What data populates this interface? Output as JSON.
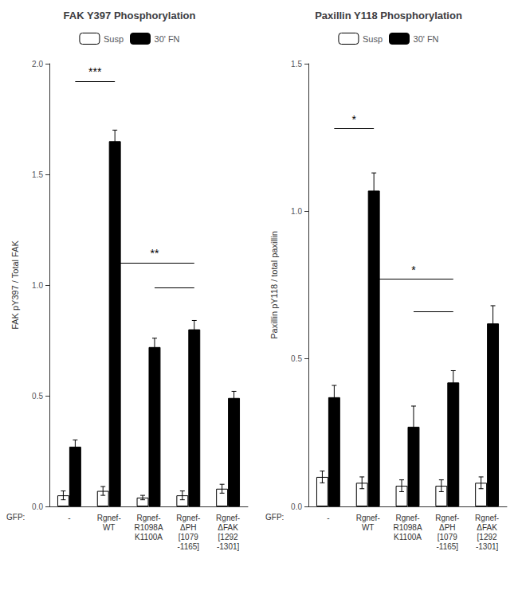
{
  "chart_data": [
    {
      "type": "bar",
      "title": "FAK Y397 Phosphorylation",
      "ylabel": "FAK pY397 / Total FAK",
      "xlabel": "GFP:",
      "categories": [
        "-",
        "Rgnef-\nWT",
        "Rgnef-\nR1098A\nK1100A",
        "Rgnef-\nΔPH\n[1079\n-1165]",
        "Rgnef-\nΔFAK\n[1292\n-1301]"
      ],
      "series": [
        {
          "name": "Susp",
          "color": "white",
          "values": [
            0.05,
            0.07,
            0.04,
            0.05,
            0.08
          ],
          "errors": [
            0.02,
            0.02,
            0.01,
            0.02,
            0.02
          ]
        },
        {
          "name": "30' FN",
          "color": "black",
          "values": [
            0.27,
            1.65,
            0.72,
            0.8,
            0.49
          ],
          "errors": [
            0.03,
            0.05,
            0.04,
            0.04,
            0.03
          ]
        }
      ],
      "ylim": [
        0,
        2.0
      ],
      "yticks": [
        {
          "value": 0,
          "label": "0.0"
        },
        {
          "value": 0.5,
          "label": "0.5"
        },
        {
          "value": 1.0,
          "label": "1.0"
        },
        {
          "value": 1.5,
          "label": "1.5"
        },
        {
          "value": 2.0,
          "label": "2.0"
        }
      ],
      "grid": false,
      "legend": "top",
      "annotations": [
        {
          "text": "***",
          "x": [
            "-",
            "Rgnef-\nWT"
          ],
          "y": 1.92
        },
        {
          "text": "**",
          "x": [
            "Rgnef-\nWT",
            "Rgnef-\nΔPH\n[1079\n-1165]"
          ],
          "y": 1.1
        },
        {
          "x": [
            "Rgnef-\nR1098A\nK1100A",
            "Rgnef-\nΔPH\n[1079\n-1165]"
          ],
          "y": 0.99
        }
      ]
    },
    {
      "type": "bar",
      "title": "Paxillin Y118 Phosphorylation",
      "ylabel": "Paxillin pY118 / total paxillin",
      "xlabel": "GFP:",
      "categories": [
        "-",
        "Rgnef-\nWT",
        "Rgnef-\nR1098A\nK1100A",
        "Rgnef-\nΔPH\n[1079\n-1165]",
        "Rgnef-\nΔFAK\n[1292\n-1301]"
      ],
      "series": [
        {
          "name": "Susp",
          "color": "white",
          "values": [
            0.1,
            0.08,
            0.07,
            0.07,
            0.08
          ],
          "errors": [
            0.02,
            0.02,
            0.02,
            0.02,
            0.02
          ]
        },
        {
          "name": "30' FN",
          "color": "black",
          "values": [
            0.37,
            1.07,
            0.27,
            0.42,
            0.62
          ],
          "errors": [
            0.04,
            0.06,
            0.07,
            0.04,
            0.06
          ]
        }
      ],
      "ylim": [
        0,
        1.5
      ],
      "yticks": [
        {
          "value": 0,
          "label": "0.0"
        },
        {
          "value": 0.5,
          "label": "0.5"
        },
        {
          "value": 1.0,
          "label": "1.0"
        },
        {
          "value": 1.5,
          "label": "1.5"
        }
      ],
      "grid": false,
      "legend": "top",
      "annotations": [
        {
          "text": "*",
          "x": [
            "-",
            "Rgnef-\nWT"
          ],
          "y": 1.28
        },
        {
          "text": "*",
          "x": [
            "Rgnef-\nWT",
            "Rgnef-\nΔPH\n[1079\n-1165]"
          ],
          "y": 0.77
        },
        {
          "x": [
            "Rgnef-\nR1098A\nK1100A",
            "Rgnef-\nΔPH\n[1079\n-1165]"
          ],
          "y": 0.66
        }
      ]
    }
  ]
}
